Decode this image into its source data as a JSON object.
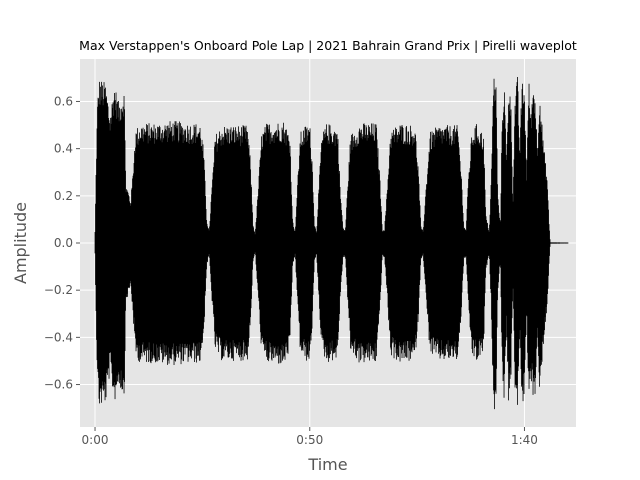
{
  "chart_data": {
    "type": "area",
    "title": "Max Verstappen's Onboard Pole Lap | 2021 Bahrain Grand Prix | Pirelli waveplot",
    "xlabel": "Time",
    "ylabel": "Amplitude",
    "xlim_seconds": [
      -3.5,
      112
    ],
    "ylim": [
      -0.78,
      0.78
    ],
    "x_ticks": [
      {
        "value": 0,
        "label": "0:00"
      },
      {
        "value": 50,
        "label": "0:50"
      },
      {
        "value": 100,
        "label": "1:40"
      }
    ],
    "y_ticks": [
      {
        "value": -0.6,
        "label": "−0.6"
      },
      {
        "value": -0.4,
        "label": "−0.4"
      },
      {
        "value": -0.2,
        "label": "−0.2"
      },
      {
        "value": 0.0,
        "label": "0.0"
      },
      {
        "value": 0.2,
        "label": "0.2"
      },
      {
        "value": 0.4,
        "label": "0.4"
      },
      {
        "value": 0.6,
        "label": "0.6"
      }
    ],
    "grid": true,
    "colors": {
      "background": "#e5e5e5",
      "grid": "#ffffff",
      "wave": "#000000",
      "text": "#555555"
    },
    "series": [
      {
        "envelope": [
          [
            0.0,
            0.05
          ],
          [
            0.3,
            0.38
          ],
          [
            0.6,
            0.62
          ],
          [
            1.0,
            0.7
          ],
          [
            2.5,
            0.68
          ],
          [
            3.5,
            0.55
          ],
          [
            4.5,
            0.68
          ],
          [
            5.5,
            0.6
          ],
          [
            6.8,
            0.66
          ],
          [
            7.2,
            0.25
          ],
          [
            7.8,
            0.22
          ],
          [
            8.3,
            0.18
          ],
          [
            8.8,
            0.3
          ],
          [
            9.4,
            0.48
          ],
          [
            10.5,
            0.51
          ],
          [
            14.0,
            0.51
          ],
          [
            18.0,
            0.52
          ],
          [
            22.0,
            0.51
          ],
          [
            24.5,
            0.51
          ],
          [
            25.3,
            0.4
          ],
          [
            26.0,
            0.1
          ],
          [
            26.6,
            0.05
          ],
          [
            27.0,
            0.18
          ],
          [
            28.0,
            0.46
          ],
          [
            29.5,
            0.5
          ],
          [
            33.0,
            0.5
          ],
          [
            35.5,
            0.5
          ],
          [
            36.2,
            0.35
          ],
          [
            36.8,
            0.08
          ],
          [
            37.3,
            0.04
          ],
          [
            37.8,
            0.18
          ],
          [
            38.8,
            0.47
          ],
          [
            40.0,
            0.51
          ],
          [
            44.0,
            0.52
          ],
          [
            45.4,
            0.46
          ],
          [
            46.0,
            0.1
          ],
          [
            46.6,
            0.05
          ],
          [
            47.0,
            0.2
          ],
          [
            47.8,
            0.47
          ],
          [
            49.0,
            0.5
          ],
          [
            50.0,
            0.51
          ],
          [
            50.6,
            0.35
          ],
          [
            51.1,
            0.08
          ],
          [
            51.6,
            0.05
          ],
          [
            52.0,
            0.2
          ],
          [
            52.8,
            0.46
          ],
          [
            54.0,
            0.51
          ],
          [
            56.5,
            0.49
          ],
          [
            57.2,
            0.2
          ],
          [
            57.8,
            0.06
          ],
          [
            58.3,
            0.06
          ],
          [
            58.8,
            0.24
          ],
          [
            59.5,
            0.46
          ],
          [
            61.5,
            0.51
          ],
          [
            65.5,
            0.51
          ],
          [
            66.3,
            0.3
          ],
          [
            66.9,
            0.06
          ],
          [
            67.4,
            0.06
          ],
          [
            68.0,
            0.22
          ],
          [
            68.8,
            0.48
          ],
          [
            71.0,
            0.51
          ],
          [
            74.5,
            0.5
          ],
          [
            75.3,
            0.32
          ],
          [
            75.9,
            0.07
          ],
          [
            76.4,
            0.05
          ],
          [
            77.0,
            0.22
          ],
          [
            78.0,
            0.47
          ],
          [
            80.0,
            0.5
          ],
          [
            84.5,
            0.5
          ],
          [
            85.3,
            0.3
          ],
          [
            85.9,
            0.07
          ],
          [
            86.4,
            0.06
          ],
          [
            87.0,
            0.3
          ],
          [
            87.8,
            0.48
          ],
          [
            89.0,
            0.51
          ],
          [
            90.5,
            0.46
          ],
          [
            91.0,
            0.12
          ],
          [
            91.8,
            0.05
          ],
          [
            92.3,
            0.3
          ],
          [
            92.8,
            0.72
          ],
          [
            93.4,
            0.68
          ],
          [
            93.8,
            0.2
          ],
          [
            94.4,
            0.08
          ],
          [
            94.8,
            0.55
          ],
          [
            95.3,
            0.7
          ],
          [
            95.8,
            0.35
          ],
          [
            96.3,
            0.68
          ],
          [
            96.8,
            0.64
          ],
          [
            97.3,
            0.18
          ],
          [
            97.8,
            0.62
          ],
          [
            98.4,
            0.71
          ],
          [
            98.9,
            0.4
          ],
          [
            99.4,
            0.69
          ],
          [
            100.0,
            0.66
          ],
          [
            100.5,
            0.3
          ],
          [
            101.0,
            0.7
          ],
          [
            101.5,
            0.55
          ],
          [
            102.0,
            0.68
          ],
          [
            102.5,
            0.65
          ],
          [
            103.0,
            0.4
          ],
          [
            103.5,
            0.66
          ],
          [
            104.2,
            0.48
          ],
          [
            104.8,
            0.36
          ],
          [
            105.3,
            0.28
          ],
          [
            105.7,
            0.1
          ],
          [
            106.0,
            0.003
          ],
          [
            110.2,
            0.002
          ]
        ]
      }
    ]
  }
}
